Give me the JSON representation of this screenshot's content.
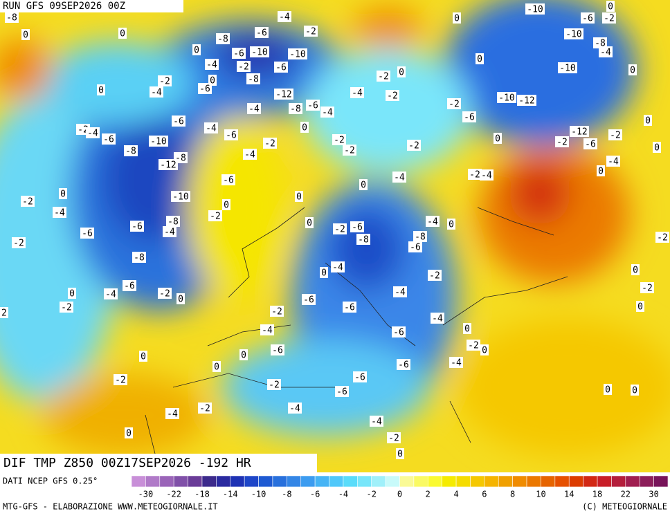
{
  "header": {
    "run": "RUN GFS 09SEP2026 00Z"
  },
  "map": {
    "contour_labels": [
      -8,
      0,
      0,
      -4,
      -6,
      -2,
      -8,
      0,
      -6,
      -10,
      -10,
      -4,
      -2,
      -6,
      -2,
      0,
      -6,
      -8,
      -4,
      0,
      -12,
      -8,
      -6,
      -4,
      -4,
      -4,
      -2,
      0,
      -2,
      0,
      0,
      -10,
      -6,
      -2,
      0,
      -10,
      -8,
      -4,
      -10,
      0,
      -10,
      -12,
      -2,
      -6,
      -6,
      -4,
      -6,
      0,
      -2,
      -4,
      -6,
      -10,
      -8,
      -2,
      -4,
      -2,
      -2,
      -2,
      0,
      -2,
      -12,
      -6,
      -2,
      0,
      0,
      -4,
      0,
      -8,
      -12,
      -6,
      -4,
      -2,
      -4,
      0,
      0,
      -2,
      0,
      -10,
      0,
      -4,
      -2,
      -8,
      -6,
      -4,
      -6,
      0,
      -2,
      -6,
      -4,
      0,
      -8,
      -8,
      -6,
      -2,
      -8,
      -4,
      0,
      -2,
      -6,
      -4,
      0,
      -2,
      0,
      -4,
      -6,
      -2,
      -2,
      -6,
      -4,
      -4,
      -6,
      0,
      -2,
      -6,
      0,
      0,
      0,
      -4,
      -6,
      0,
      -2,
      -6,
      -2,
      -6,
      0,
      0,
      -2,
      -4,
      -4,
      -4,
      0,
      -2,
      0,
      0,
      -2,
      0,
      -2,
      -2
    ]
  },
  "footer": {
    "title": "DIF TMP Z850 00Z17SEP2026 -192 HR",
    "source": "DATI NCEP GFS 0.25°",
    "credit_left": "MTG-GFS - ELABORAZIONE WWW.METEOGIORNALE.IT",
    "credit_right": "(C) METEOGIORNALE"
  },
  "colorbar": {
    "colors": [
      "#c88fd8",
      "#b07ac8",
      "#9a64b8",
      "#8050a8",
      "#6a3c98",
      "#3c2a8c",
      "#2a2aa0",
      "#1e32b4",
      "#1e46c8",
      "#1e5ad2",
      "#2870dc",
      "#3486e6",
      "#3c9cf0",
      "#46b4f5",
      "#50c8fa",
      "#5adcfa",
      "#78e6fa",
      "#a0f0fa",
      "#c8fafa",
      "#fafa96",
      "#fafa64",
      "#fafa32",
      "#f5eb00",
      "#f5dc00",
      "#f5c800",
      "#f5b400",
      "#f0a000",
      "#f08c00",
      "#eb7800",
      "#e66400",
      "#e65000",
      "#dc3c00",
      "#d22814",
      "#c81e28",
      "#b41e3c",
      "#a01e50",
      "#8c1e5a",
      "#78145a"
    ],
    "ticks": [
      -30,
      -22,
      -18,
      -14,
      -10,
      -8,
      -6,
      -4,
      -2,
      0,
      2,
      4,
      6,
      8,
      10,
      14,
      18,
      22,
      30
    ]
  }
}
